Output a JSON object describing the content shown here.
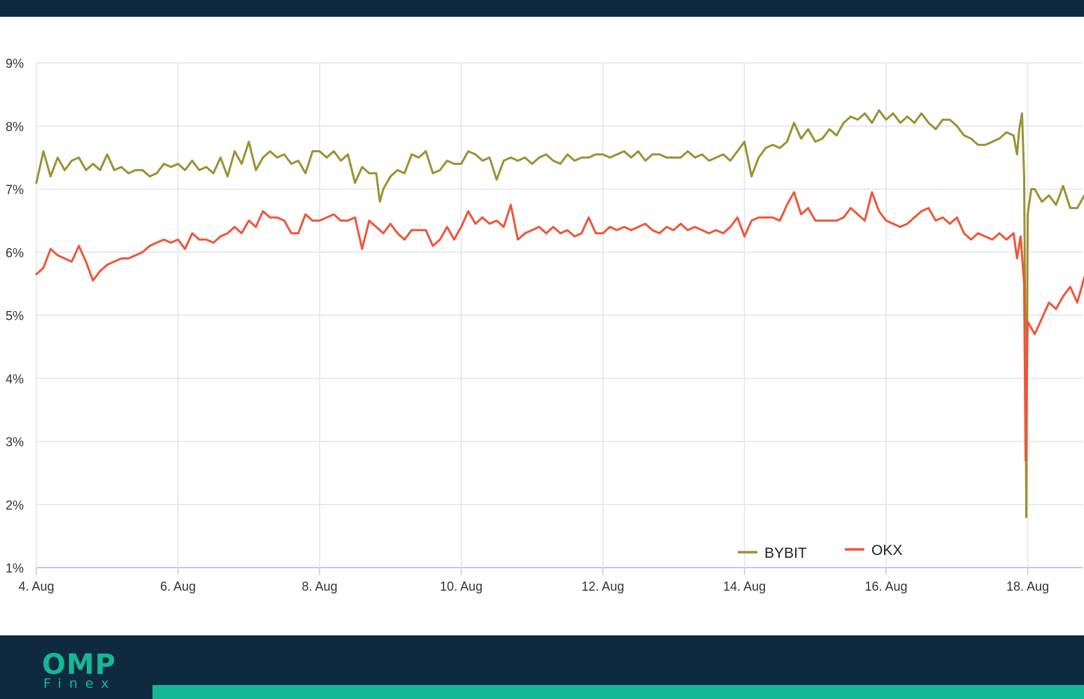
{
  "brand": {
    "name": "OMP",
    "sub": "Finex",
    "colors": {
      "header_bg": "#0f2a40",
      "accent": "#14b894"
    }
  },
  "chart_data": {
    "type": "line",
    "title": "",
    "xlabel": "",
    "ylabel": "",
    "x_range": [
      "4. Aug",
      "18.6 Aug"
    ],
    "x_ticks": [
      "4. Aug",
      "6. Aug",
      "8. Aug",
      "10. Aug",
      "12. Aug",
      "14. Aug",
      "16. Aug",
      "18. Aug"
    ],
    "y_ticks": [
      "1%",
      "2%",
      "3%",
      "4%",
      "5%",
      "6%",
      "7%",
      "8%",
      "9%"
    ],
    "ylim": [
      1,
      9
    ],
    "grid": true,
    "legend_position": "bottom-right",
    "series": [
      {
        "name": "BYBIT",
        "color": "#9a9132",
        "points": [
          [
            0.0,
            7.1
          ],
          [
            0.1,
            7.6
          ],
          [
            0.2,
            7.2
          ],
          [
            0.3,
            7.5
          ],
          [
            0.4,
            7.3
          ],
          [
            0.5,
            7.45
          ],
          [
            0.6,
            7.5
          ],
          [
            0.7,
            7.3
          ],
          [
            0.8,
            7.4
          ],
          [
            0.9,
            7.3
          ],
          [
            1.0,
            7.55
          ],
          [
            1.1,
            7.3
          ],
          [
            1.2,
            7.35
          ],
          [
            1.3,
            7.25
          ],
          [
            1.4,
            7.3
          ],
          [
            1.5,
            7.3
          ],
          [
            1.6,
            7.2
          ],
          [
            1.7,
            7.25
          ],
          [
            1.8,
            7.4
          ],
          [
            1.9,
            7.35
          ],
          [
            2.0,
            7.4
          ],
          [
            2.1,
            7.3
          ],
          [
            2.2,
            7.45
          ],
          [
            2.3,
            7.3
          ],
          [
            2.4,
            7.35
          ],
          [
            2.5,
            7.25
          ],
          [
            2.6,
            7.5
          ],
          [
            2.7,
            7.2
          ],
          [
            2.8,
            7.6
          ],
          [
            2.9,
            7.4
          ],
          [
            3.0,
            7.75
          ],
          [
            3.1,
            7.3
          ],
          [
            3.2,
            7.5
          ],
          [
            3.3,
            7.6
          ],
          [
            3.4,
            7.5
          ],
          [
            3.5,
            7.55
          ],
          [
            3.6,
            7.4
          ],
          [
            3.7,
            7.45
          ],
          [
            3.8,
            7.25
          ],
          [
            3.9,
            7.6
          ],
          [
            4.0,
            7.6
          ],
          [
            4.1,
            7.5
          ],
          [
            4.2,
            7.6
          ],
          [
            4.3,
            7.45
          ],
          [
            4.4,
            7.55
          ],
          [
            4.5,
            7.1
          ],
          [
            4.6,
            7.35
          ],
          [
            4.7,
            7.25
          ],
          [
            4.8,
            7.25
          ],
          [
            4.85,
            6.8
          ],
          [
            4.9,
            7.0
          ],
          [
            5.0,
            7.2
          ],
          [
            5.1,
            7.3
          ],
          [
            5.2,
            7.25
          ],
          [
            5.3,
            7.55
          ],
          [
            5.4,
            7.5
          ],
          [
            5.5,
            7.6
          ],
          [
            5.6,
            7.25
          ],
          [
            5.7,
            7.3
          ],
          [
            5.8,
            7.45
          ],
          [
            5.9,
            7.4
          ],
          [
            6.0,
            7.4
          ],
          [
            6.1,
            7.6
          ],
          [
            6.2,
            7.55
          ],
          [
            6.3,
            7.45
          ],
          [
            6.4,
            7.5
          ],
          [
            6.5,
            7.15
          ],
          [
            6.6,
            7.45
          ],
          [
            6.7,
            7.5
          ],
          [
            6.8,
            7.45
          ],
          [
            6.9,
            7.5
          ],
          [
            7.0,
            7.4
          ],
          [
            7.1,
            7.5
          ],
          [
            7.2,
            7.55
          ],
          [
            7.3,
            7.45
          ],
          [
            7.4,
            7.4
          ],
          [
            7.5,
            7.55
          ],
          [
            7.6,
            7.45
          ],
          [
            7.7,
            7.5
          ],
          [
            7.8,
            7.5
          ],
          [
            7.9,
            7.55
          ],
          [
            8.0,
            7.55
          ],
          [
            8.1,
            7.5
          ],
          [
            8.2,
            7.55
          ],
          [
            8.3,
            7.6
          ],
          [
            8.4,
            7.5
          ],
          [
            8.5,
            7.6
          ],
          [
            8.6,
            7.45
          ],
          [
            8.7,
            7.55
          ],
          [
            8.8,
            7.55
          ],
          [
            8.9,
            7.5
          ],
          [
            9.0,
            7.5
          ],
          [
            9.1,
            7.5
          ],
          [
            9.2,
            7.6
          ],
          [
            9.3,
            7.5
          ],
          [
            9.4,
            7.55
          ],
          [
            9.5,
            7.45
          ],
          [
            9.6,
            7.5
          ],
          [
            9.7,
            7.55
          ],
          [
            9.8,
            7.45
          ],
          [
            9.9,
            7.6
          ],
          [
            10.0,
            7.75
          ],
          [
            10.1,
            7.2
          ],
          [
            10.2,
            7.5
          ],
          [
            10.3,
            7.65
          ],
          [
            10.4,
            7.7
          ],
          [
            10.5,
            7.65
          ],
          [
            10.6,
            7.75
          ],
          [
            10.7,
            8.05
          ],
          [
            10.8,
            7.8
          ],
          [
            10.9,
            7.95
          ],
          [
            11.0,
            7.75
          ],
          [
            11.1,
            7.8
          ],
          [
            11.2,
            7.95
          ],
          [
            11.3,
            7.85
          ],
          [
            11.4,
            8.05
          ],
          [
            11.5,
            8.15
          ],
          [
            11.6,
            8.1
          ],
          [
            11.7,
            8.2
          ],
          [
            11.8,
            8.05
          ],
          [
            11.9,
            8.25
          ],
          [
            12.0,
            8.1
          ],
          [
            12.1,
            8.2
          ],
          [
            12.2,
            8.05
          ],
          [
            12.3,
            8.15
          ],
          [
            12.4,
            8.05
          ],
          [
            12.5,
            8.2
          ],
          [
            12.6,
            8.05
          ],
          [
            12.7,
            7.95
          ],
          [
            12.8,
            8.1
          ],
          [
            12.9,
            8.1
          ],
          [
            13.0,
            8.0
          ],
          [
            13.1,
            7.85
          ],
          [
            13.2,
            7.8
          ],
          [
            13.3,
            7.7
          ],
          [
            13.4,
            7.7
          ],
          [
            13.5,
            7.75
          ],
          [
            13.6,
            7.8
          ],
          [
            13.7,
            7.9
          ],
          [
            13.8,
            7.85
          ],
          [
            13.85,
            7.55
          ],
          [
            13.88,
            7.95
          ],
          [
            13.92,
            8.2
          ],
          [
            13.95,
            7.2
          ],
          [
            13.97,
            4.0
          ],
          [
            13.98,
            1.8
          ],
          [
            14.0,
            6.6
          ],
          [
            14.05,
            7.0
          ],
          [
            14.1,
            7.0
          ],
          [
            14.2,
            6.8
          ],
          [
            14.3,
            6.9
          ],
          [
            14.4,
            6.75
          ],
          [
            14.5,
            7.05
          ],
          [
            14.6,
            6.7
          ],
          [
            14.7,
            6.7
          ],
          [
            14.8,
            6.9
          ]
        ]
      },
      {
        "name": "OKX",
        "color": "#f0543a",
        "points": [
          [
            0.0,
            5.65
          ],
          [
            0.1,
            5.75
          ],
          [
            0.2,
            6.05
          ],
          [
            0.3,
            5.95
          ],
          [
            0.4,
            5.9
          ],
          [
            0.5,
            5.85
          ],
          [
            0.6,
            6.1
          ],
          [
            0.7,
            5.85
          ],
          [
            0.8,
            5.55
          ],
          [
            0.9,
            5.7
          ],
          [
            1.0,
            5.8
          ],
          [
            1.1,
            5.85
          ],
          [
            1.2,
            5.9
          ],
          [
            1.3,
            5.9
          ],
          [
            1.4,
            5.95
          ],
          [
            1.5,
            6.0
          ],
          [
            1.6,
            6.1
          ],
          [
            1.7,
            6.15
          ],
          [
            1.8,
            6.2
          ],
          [
            1.9,
            6.15
          ],
          [
            2.0,
            6.2
          ],
          [
            2.1,
            6.05
          ],
          [
            2.2,
            6.3
          ],
          [
            2.3,
            6.2
          ],
          [
            2.4,
            6.2
          ],
          [
            2.5,
            6.15
          ],
          [
            2.6,
            6.25
          ],
          [
            2.7,
            6.3
          ],
          [
            2.8,
            6.4
          ],
          [
            2.9,
            6.3
          ],
          [
            3.0,
            6.5
          ],
          [
            3.1,
            6.4
          ],
          [
            3.2,
            6.65
          ],
          [
            3.3,
            6.55
          ],
          [
            3.4,
            6.55
          ],
          [
            3.5,
            6.5
          ],
          [
            3.6,
            6.3
          ],
          [
            3.7,
            6.3
          ],
          [
            3.8,
            6.6
          ],
          [
            3.9,
            6.5
          ],
          [
            4.0,
            6.5
          ],
          [
            4.1,
            6.55
          ],
          [
            4.2,
            6.6
          ],
          [
            4.3,
            6.5
          ],
          [
            4.4,
            6.5
          ],
          [
            4.5,
            6.55
          ],
          [
            4.6,
            6.05
          ],
          [
            4.7,
            6.5
          ],
          [
            4.8,
            6.4
          ],
          [
            4.9,
            6.3
          ],
          [
            5.0,
            6.45
          ],
          [
            5.1,
            6.3
          ],
          [
            5.2,
            6.2
          ],
          [
            5.3,
            6.35
          ],
          [
            5.4,
            6.35
          ],
          [
            5.5,
            6.35
          ],
          [
            5.6,
            6.1
          ],
          [
            5.7,
            6.2
          ],
          [
            5.8,
            6.4
          ],
          [
            5.9,
            6.2
          ],
          [
            6.0,
            6.4
          ],
          [
            6.1,
            6.65
          ],
          [
            6.2,
            6.45
          ],
          [
            6.3,
            6.55
          ],
          [
            6.4,
            6.45
          ],
          [
            6.5,
            6.5
          ],
          [
            6.6,
            6.4
          ],
          [
            6.7,
            6.75
          ],
          [
            6.8,
            6.2
          ],
          [
            6.9,
            6.3
          ],
          [
            7.0,
            6.35
          ],
          [
            7.1,
            6.4
          ],
          [
            7.2,
            6.3
          ],
          [
            7.3,
            6.4
          ],
          [
            7.4,
            6.3
          ],
          [
            7.5,
            6.35
          ],
          [
            7.6,
            6.25
          ],
          [
            7.7,
            6.3
          ],
          [
            7.8,
            6.55
          ],
          [
            7.9,
            6.3
          ],
          [
            8.0,
            6.3
          ],
          [
            8.1,
            6.4
          ],
          [
            8.2,
            6.35
          ],
          [
            8.3,
            6.4
          ],
          [
            8.4,
            6.35
          ],
          [
            8.5,
            6.4
          ],
          [
            8.6,
            6.45
          ],
          [
            8.7,
            6.35
          ],
          [
            8.8,
            6.3
          ],
          [
            8.9,
            6.4
          ],
          [
            9.0,
            6.35
          ],
          [
            9.1,
            6.45
          ],
          [
            9.2,
            6.35
          ],
          [
            9.3,
            6.4
          ],
          [
            9.4,
            6.35
          ],
          [
            9.5,
            6.3
          ],
          [
            9.6,
            6.35
          ],
          [
            9.7,
            6.3
          ],
          [
            9.8,
            6.4
          ],
          [
            9.9,
            6.55
          ],
          [
            10.0,
            6.25
          ],
          [
            10.1,
            6.5
          ],
          [
            10.2,
            6.55
          ],
          [
            10.3,
            6.55
          ],
          [
            10.4,
            6.55
          ],
          [
            10.5,
            6.5
          ],
          [
            10.6,
            6.75
          ],
          [
            10.7,
            6.95
          ],
          [
            10.8,
            6.6
          ],
          [
            10.9,
            6.7
          ],
          [
            11.0,
            6.5
          ],
          [
            11.1,
            6.5
          ],
          [
            11.2,
            6.5
          ],
          [
            11.3,
            6.5
          ],
          [
            11.4,
            6.55
          ],
          [
            11.5,
            6.7
          ],
          [
            11.6,
            6.6
          ],
          [
            11.7,
            6.5
          ],
          [
            11.8,
            6.95
          ],
          [
            11.9,
            6.65
          ],
          [
            12.0,
            6.5
          ],
          [
            12.1,
            6.45
          ],
          [
            12.2,
            6.4
          ],
          [
            12.3,
            6.45
          ],
          [
            12.4,
            6.55
          ],
          [
            12.5,
            6.65
          ],
          [
            12.6,
            6.7
          ],
          [
            12.7,
            6.5
          ],
          [
            12.8,
            6.55
          ],
          [
            12.9,
            6.45
          ],
          [
            13.0,
            6.55
          ],
          [
            13.1,
            6.3
          ],
          [
            13.2,
            6.2
          ],
          [
            13.3,
            6.3
          ],
          [
            13.4,
            6.25
          ],
          [
            13.5,
            6.2
          ],
          [
            13.6,
            6.3
          ],
          [
            13.7,
            6.2
          ],
          [
            13.8,
            6.3
          ],
          [
            13.85,
            5.9
          ],
          [
            13.9,
            6.25
          ],
          [
            13.95,
            5.5
          ],
          [
            13.97,
            2.7
          ],
          [
            14.0,
            4.9
          ],
          [
            14.1,
            4.7
          ],
          [
            14.2,
            4.95
          ],
          [
            14.3,
            5.2
          ],
          [
            14.4,
            5.1
          ],
          [
            14.5,
            5.3
          ],
          [
            14.6,
            5.45
          ],
          [
            14.7,
            5.2
          ],
          [
            14.8,
            5.6
          ]
        ]
      }
    ]
  }
}
